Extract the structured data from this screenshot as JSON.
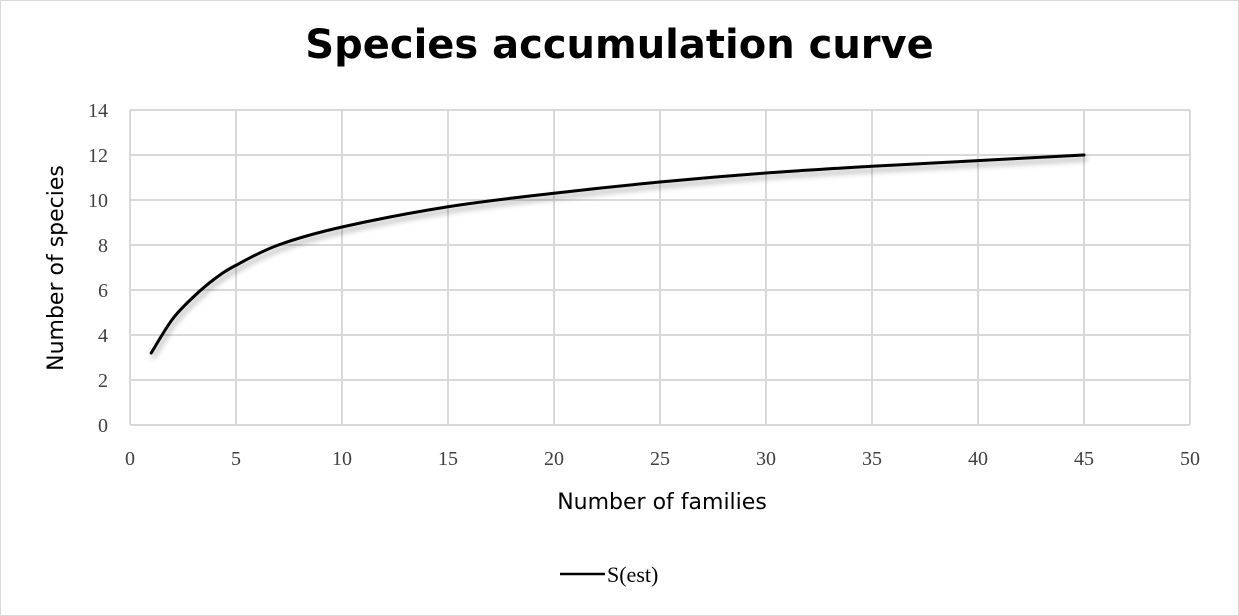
{
  "chart_data": {
    "type": "line",
    "title": "Species accumulation curve",
    "xlabel": "Number of families",
    "ylabel": "Number of species",
    "xlim": [
      0,
      50
    ],
    "ylim": [
      0,
      14
    ],
    "xticks": [
      0,
      5,
      10,
      15,
      20,
      25,
      30,
      35,
      40,
      45,
      50
    ],
    "yticks": [
      0,
      2,
      4,
      6,
      8,
      10,
      12,
      14
    ],
    "grid": true,
    "legend": "bottom",
    "series": [
      {
        "name": "S(est)",
        "color": "#000000",
        "x": [
          1,
          2,
          3,
          4,
          5,
          7,
          10,
          15,
          20,
          25,
          30,
          35,
          40,
          45
        ],
        "y": [
          3.2,
          4.7,
          5.7,
          6.5,
          7.1,
          8.0,
          8.8,
          9.7,
          10.3,
          10.8,
          11.2,
          11.5,
          11.75,
          12.0
        ]
      }
    ]
  }
}
